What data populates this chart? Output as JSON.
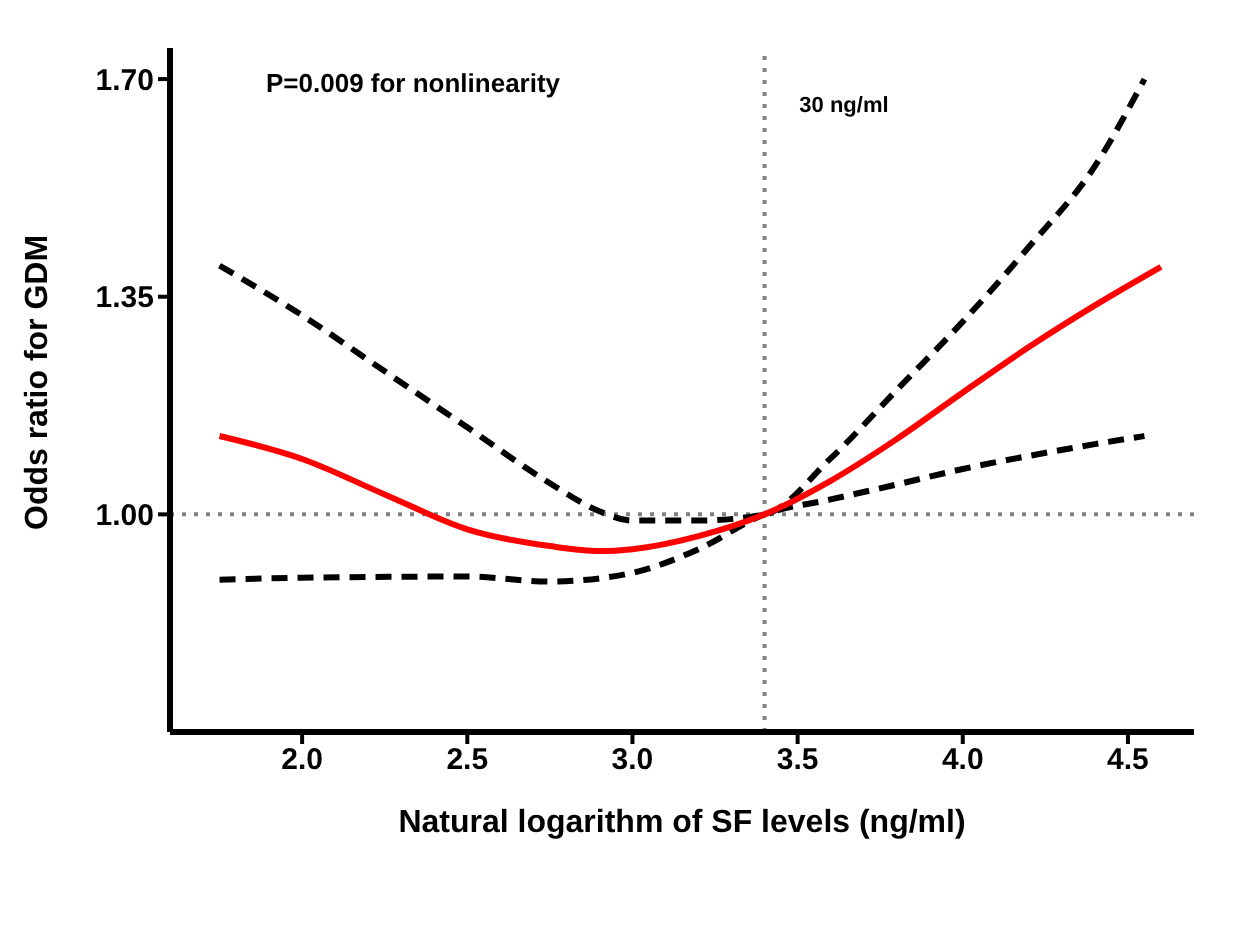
{
  "chart_data": {
    "type": "line",
    "xlabel": "Natural logarithm of SF levels (ng/ml)",
    "ylabel": "Odds ratio for GDM",
    "xlim": [
      1.6,
      4.7
    ],
    "ylim": [
      0.65,
      1.75
    ],
    "xticks": [
      {
        "value": 2,
        "label": "2.0"
      },
      {
        "value": 2.5,
        "label": "2.5"
      },
      {
        "value": 3,
        "label": "3.0"
      },
      {
        "value": 3.5,
        "label": "3.5"
      },
      {
        "value": 4,
        "label": "4.0"
      },
      {
        "value": 4.5,
        "label": "4.5"
      }
    ],
    "yticks": [
      {
        "value": 1,
        "label": "1.00"
      },
      {
        "value": 1.35,
        "label": "1.35"
      },
      {
        "value": 1.7,
        "label": "1.70"
      }
    ],
    "grid": false,
    "legend": false,
    "marker": "none",
    "series": [
      {
        "color": "#000000",
        "line_style": "dashed",
        "x": [
          1.75,
          2.0,
          2.25,
          2.5,
          2.75,
          2.9,
          3.0,
          3.2,
          3.4,
          3.6,
          3.8,
          4.0,
          4.2,
          4.4,
          4.55
        ],
        "values": [
          1.4,
          1.32,
          1.23,
          1.14,
          1.05,
          1.005,
          0.99,
          0.99,
          1.0,
          1.09,
          1.2,
          1.31,
          1.43,
          1.56,
          1.7
        ]
      },
      {
        "color": "#000000",
        "line_style": "dashed",
        "x": [
          1.75,
          2.0,
          2.5,
          2.75,
          3.0,
          3.2,
          3.4,
          3.6,
          3.8,
          4.0,
          4.2,
          4.4,
          4.55
        ],
        "values": [
          0.895,
          0.898,
          0.9,
          0.892,
          0.906,
          0.944,
          1.0,
          1.024,
          1.048,
          1.073,
          1.094,
          1.113,
          1.126
        ]
      },
      {
        "color": "#ff0000",
        "line_style": "solid",
        "x": [
          1.75,
          2.0,
          2.25,
          2.5,
          2.75,
          2.9,
          3.0,
          3.2,
          3.4,
          3.6,
          3.8,
          4.0,
          4.2,
          4.4,
          4.6
        ],
        "values": [
          1.126,
          1.089,
          1.032,
          0.976,
          0.949,
          0.941,
          0.944,
          0.965,
          1.0,
          1.054,
          1.121,
          1.196,
          1.269,
          1.336,
          1.398
        ]
      }
    ],
    "ref_lines": [
      {
        "axis": "x",
        "value": 3.4,
        "label": "30 ng/ml",
        "color": "#808080",
        "line_style": "dotted"
      },
      {
        "axis": "y",
        "value": 1.0,
        "label": null,
        "color": "#808080",
        "line_style": "dotted"
      }
    ],
    "annotations": [
      "P=0.009 for nonlinearity"
    ]
  }
}
